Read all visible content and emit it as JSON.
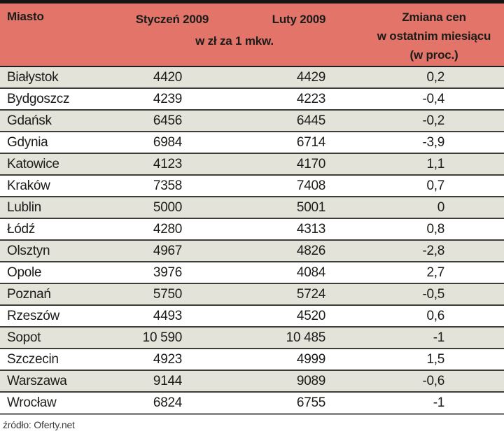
{
  "colors": {
    "header_bg": "#e2746a",
    "row_alt_bg": "#e3e3da",
    "row_bg": "#ffffff",
    "separator": "#3e3e38",
    "top_bar": "#151515",
    "bottom_border": "#8c8c8c",
    "text": "#1b1b18"
  },
  "header": {
    "col_city": "Miasto",
    "col_jan": "Styczeń 2009",
    "col_feb": "Luty 2009",
    "unit_note": "w zł za 1 mkw.",
    "col_change_line1": "Zmiana cen",
    "col_change_line2": "w ostatnim miesiącu",
    "col_change_line3": "(w proc.)"
  },
  "footer": {
    "source": "źródło: Oferty.net"
  },
  "chart_data": {
    "type": "table",
    "title": "",
    "columns": [
      "Miasto",
      "Styczeń 2009 (w zł za 1 mkw.)",
      "Luty 2009 (w zł za 1 mkw.)",
      "Zmiana cen w ostatnim miesiącu (w proc.)"
    ],
    "rows": [
      {
        "city": "Białystok",
        "jan": "4420",
        "feb": "4429",
        "change": "0,2"
      },
      {
        "city": "Bydgoszcz",
        "jan": "4239",
        "feb": "4223",
        "change": "-0,4"
      },
      {
        "city": "Gdańsk",
        "jan": "6456",
        "feb": "6445",
        "change": "-0,2"
      },
      {
        "city": "Gdynia",
        "jan": "6984",
        "feb": "6714",
        "change": "-3,9"
      },
      {
        "city": "Katowice",
        "jan": "4123",
        "feb": "4170",
        "change": "1,1"
      },
      {
        "city": "Kraków",
        "jan": "7358",
        "feb": "7408",
        "change": "0,7"
      },
      {
        "city": "Lublin",
        "jan": "5000",
        "feb": "5001",
        "change": "0"
      },
      {
        "city": "Łódź",
        "jan": "4280",
        "feb": "4313",
        "change": "0,8"
      },
      {
        "city": "Olsztyn",
        "jan": "4967",
        "feb": "4826",
        "change": "-2,8"
      },
      {
        "city": "Opole",
        "jan": "3976",
        "feb": "4084",
        "change": "2,7"
      },
      {
        "city": "Poznań",
        "jan": "5750",
        "feb": "5724",
        "change": "-0,5"
      },
      {
        "city": "Rzeszów",
        "jan": "4493",
        "feb": "4520",
        "change": "0,6"
      },
      {
        "city": "Sopot",
        "jan": "10 590",
        "feb": "10 485",
        "change": "-1"
      },
      {
        "city": "Szczecin",
        "jan": "4923",
        "feb": "4999",
        "change": "1,5"
      },
      {
        "city": "Warszawa",
        "jan": "9144",
        "feb": "9089",
        "change": "-0,6"
      },
      {
        "city": "Wrocław",
        "jan": "6824",
        "feb": "6755",
        "change": "-1"
      }
    ],
    "source": "źródło: Oferty.net"
  }
}
